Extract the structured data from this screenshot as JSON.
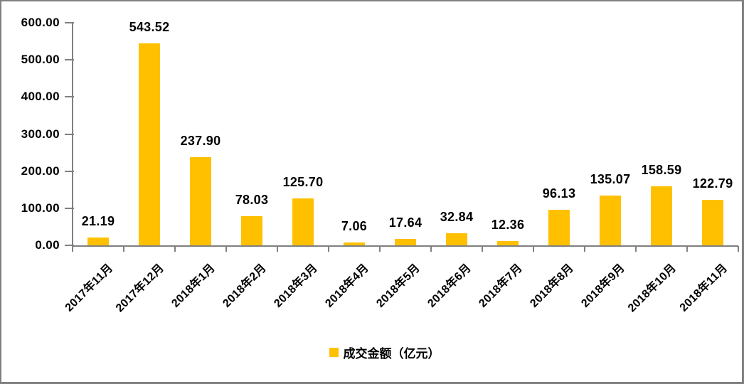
{
  "chart_data": {
    "type": "bar",
    "categories": [
      "2017年11月",
      "2017年12月",
      "2018年1月",
      "2018年2月",
      "2018年3月",
      "2018年4月",
      "2018年5月",
      "2018年6月",
      "2018年7月",
      "2018年8月",
      "2018年9月",
      "2018年10月",
      "2018年11月"
    ],
    "values": [
      21.19,
      543.52,
      237.9,
      78.03,
      125.7,
      7.06,
      17.64,
      32.84,
      12.36,
      96.13,
      135.07,
      158.59,
      122.79
    ],
    "value_labels": [
      "21.19",
      "543.52",
      "237.90",
      "78.03",
      "125.70",
      "7.06",
      "17.64",
      "32.84",
      "12.36",
      "96.13",
      "135.07",
      "158.59",
      "122.79"
    ],
    "series_name": "成交金额（亿元）",
    "ylim": [
      0,
      600
    ],
    "y_ticks": [
      "600.00",
      "500.00",
      "400.00",
      "300.00",
      "200.00",
      "100.00",
      "0.00"
    ],
    "grid": false,
    "legend_position": "bottom",
    "bar_color": "#FFC000",
    "axis_color": "#808080",
    "text_color": "#000000"
  }
}
